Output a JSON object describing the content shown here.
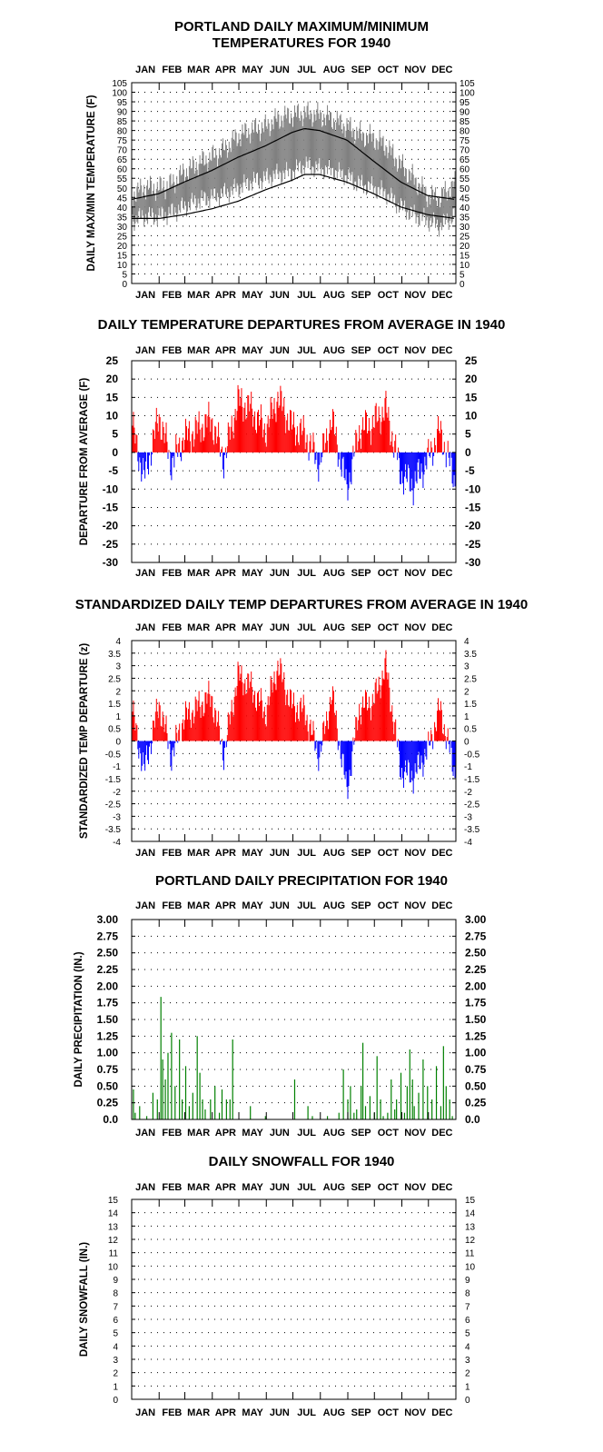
{
  "months": [
    "JAN",
    "FEB",
    "MAR",
    "APR",
    "MAY",
    "JUN",
    "JUL",
    "AUG",
    "SEP",
    "OCT",
    "NOV",
    "DEC"
  ],
  "chart_data": [
    {
      "id": "temps",
      "type": "area",
      "title_lines": [
        "PORTLAND DAILY MAXIMUM/MINIMUM",
        "TEMPERATURES FOR 1940"
      ],
      "ylabel": "DAILY MAX/MIN TEMPERATURE (F)",
      "ylim": [
        0,
        105
      ],
      "yticks": [
        0,
        5,
        10,
        15,
        20,
        25,
        30,
        35,
        40,
        45,
        50,
        55,
        60,
        65,
        70,
        75,
        80,
        85,
        90,
        95,
        100,
        105
      ],
      "grid": "dotted",
      "x_unit": "day of year",
      "series": [
        {
          "name": "Daily max/min range",
          "color": "#808080",
          "x": [
            1,
            15,
            32,
            46,
            60,
            74,
            91,
            105,
            121,
            135,
            152,
            166,
            182,
            196,
            213,
            227,
            244,
            258,
            274,
            288,
            305,
            319,
            335,
            349,
            366
          ],
          "max": [
            46,
            50,
            50,
            52,
            58,
            62,
            66,
            70,
            77,
            80,
            82,
            86,
            88,
            89,
            88,
            86,
            82,
            78,
            76,
            72,
            62,
            55,
            46,
            45,
            52
          ],
          "min": [
            33,
            35,
            35,
            37,
            40,
            43,
            45,
            47,
            50,
            53,
            55,
            57,
            58,
            62,
            60,
            59,
            56,
            52,
            50,
            47,
            40,
            36,
            33,
            30,
            36
          ]
        },
        {
          "name": "Normal maximum",
          "color": "#000000",
          "x": [
            1,
            32,
            60,
            91,
            121,
            152,
            182,
            196,
            213,
            244,
            274,
            305,
            335,
            366
          ],
          "values": [
            44,
            47,
            53,
            59,
            66,
            72,
            79,
            81,
            80,
            75,
            64,
            53,
            46,
            44
          ]
        },
        {
          "name": "Normal minimum",
          "color": "#000000",
          "x": [
            1,
            32,
            60,
            91,
            121,
            152,
            182,
            196,
            213,
            244,
            274,
            305,
            335,
            366
          ],
          "values": [
            34,
            34,
            36,
            39,
            43,
            49,
            54,
            57,
            57,
            53,
            47,
            40,
            36,
            34
          ]
        }
      ]
    },
    {
      "id": "depart",
      "type": "bar",
      "title_lines": [
        "DAILY TEMPERATURE DEPARTURES FROM AVERAGE IN 1940"
      ],
      "ylabel": "DEPARTURE FROM AVERAGE (F)",
      "ylim": [
        -30,
        25
      ],
      "yticks": [
        -30,
        -25,
        -20,
        -15,
        -10,
        -5,
        0,
        5,
        10,
        15,
        20,
        25
      ],
      "grid": "dotted",
      "x_unit": "day of year",
      "positive_color": "#ff0000",
      "negative_color": "#0000ff",
      "x": [
        1,
        15,
        32,
        46,
        60,
        74,
        91,
        105,
        121,
        135,
        152,
        166,
        182,
        196,
        213,
        227,
        244,
        258,
        274,
        288,
        305,
        319,
        335,
        349,
        366
      ],
      "values": [
        8,
        -7,
        10,
        -3,
        4,
        6,
        9,
        -2,
        14,
        12,
        6,
        15,
        7,
        5,
        -3,
        9,
        -10,
        6,
        8,
        12,
        -6,
        -9,
        -2,
        6,
        -8
      ]
    },
    {
      "id": "stdz",
      "type": "bar",
      "title_lines": [
        "STANDARDIZED DAILY TEMP DEPARTURES FROM AVERAGE IN 1940"
      ],
      "ylabel": "STANDARDIZED TEMP DEPARTURE (z)",
      "ylim": [
        -4,
        4
      ],
      "yticks": [
        -4,
        -3.5,
        -3,
        -2.5,
        -2,
        -1.5,
        -1,
        -0.5,
        0,
        0.5,
        1,
        1.5,
        2,
        2.5,
        3,
        3.5,
        4
      ],
      "grid": "dotted",
      "x_unit": "day of year",
      "positive_color": "#ff0000",
      "negative_color": "#0000ff",
      "x": [
        1,
        15,
        32,
        46,
        60,
        74,
        91,
        105,
        121,
        135,
        152,
        166,
        182,
        196,
        213,
        227,
        244,
        258,
        274,
        288,
        305,
        319,
        335,
        349,
        366
      ],
      "values": [
        1.3,
        -1.2,
        1.5,
        -0.6,
        0.9,
        1.3,
        1.8,
        -0.5,
        2.6,
        2.2,
        1.1,
        3.0,
        1.4,
        1.2,
        -0.6,
        1.9,
        -2.0,
        1.3,
        1.6,
        3.0,
        -1.2,
        -1.4,
        -0.4,
        1.3,
        -1.3
      ]
    },
    {
      "id": "precip",
      "type": "bar",
      "title_lines": [
        "PORTLAND DAILY PRECIPITATION FOR 1940"
      ],
      "ylabel": "DAILY PRECIPITATION (IN.)",
      "ylim": [
        0,
        3
      ],
      "yticks": [
        "0.0",
        "0.25",
        "0.50",
        "0.75",
        "1.00",
        "1.25",
        "1.50",
        "1.75",
        "2.00",
        "2.25",
        "2.50",
        "2.75",
        "3.00"
      ],
      "grid": "dotted",
      "x_unit": "day of year",
      "color": "#008000",
      "x": [
        3,
        5,
        10,
        18,
        25,
        30,
        34,
        36,
        39,
        42,
        46,
        50,
        55,
        58,
        62,
        66,
        70,
        75,
        78,
        81,
        84,
        90,
        95,
        100,
        103,
        108,
        112,
        115,
        135,
        152,
        185,
        200,
        205,
        222,
        235,
        240,
        245,
        248,
        252,
        255,
        260,
        262,
        265,
        270,
        275,
        278,
        282,
        285,
        290,
        294,
        298,
        300,
        305,
        309,
        312,
        315,
        318,
        320,
        325,
        330,
        335,
        340,
        345,
        350,
        353,
        356,
        360,
        363
      ],
      "values": [
        0.45,
        0.1,
        0.2,
        0.05,
        0.4,
        0.3,
        1.84,
        0.9,
        0.6,
        1.0,
        1.3,
        0.5,
        1.2,
        0.3,
        0.8,
        0.2,
        0.4,
        1.25,
        0.7,
        0.3,
        0.15,
        0.3,
        0.5,
        0.1,
        0.45,
        0.3,
        0.3,
        1.2,
        0.2,
        0.05,
        0.6,
        0.2,
        0.05,
        0.05,
        0.1,
        0.75,
        0.3,
        0.5,
        0.1,
        0.15,
        0.5,
        1.15,
        0.2,
        0.35,
        0.1,
        0.95,
        0.3,
        0.05,
        0.1,
        0.6,
        0.15,
        0.3,
        0.7,
        0.1,
        0.5,
        1.05,
        0.6,
        0.2,
        0.4,
        0.9,
        0.5,
        0.3,
        0.8,
        0.2,
        1.1,
        0.5,
        0.3,
        0.05
      ]
    },
    {
      "id": "snow",
      "type": "bar",
      "title_lines": [
        "DAILY SNOWFALL FOR 1940"
      ],
      "ylabel": "DAILY SNOWFALL (IN.)",
      "ylim": [
        0,
        15
      ],
      "yticks": [
        0,
        1,
        2,
        3,
        4,
        5,
        6,
        7,
        8,
        9,
        10,
        11,
        12,
        13,
        14,
        15
      ],
      "grid": "dotted",
      "x_unit": "day of year",
      "color": "#000000",
      "x": [],
      "values": []
    }
  ]
}
